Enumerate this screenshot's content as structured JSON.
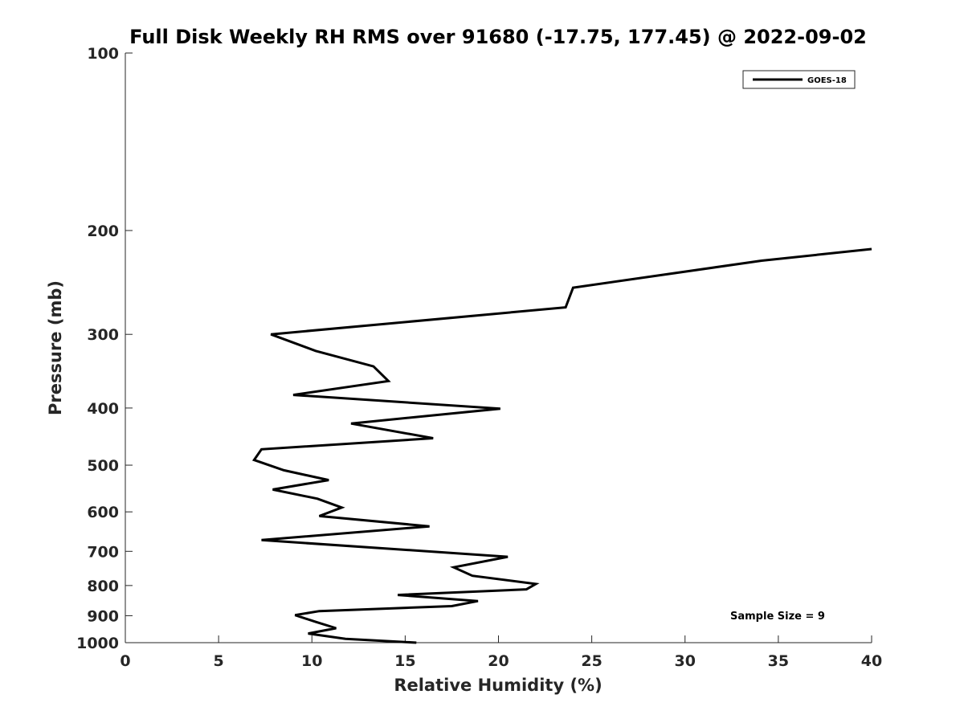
{
  "chart_data": {
    "type": "line",
    "title": "Full Disk Weekly RH RMS over 91680 (-17.75, 177.45) @ 2022-09-02",
    "xlabel": "Relative Humidity (%)",
    "ylabel": "Pressure (mb)",
    "xlim": [
      0,
      40
    ],
    "ylim": [
      100,
      1000
    ],
    "yscale": "log",
    "yreversed": true,
    "grid": false,
    "x_ticks": [
      "0",
      "5",
      "10",
      "15",
      "20",
      "25",
      "30",
      "35",
      "40"
    ],
    "y_ticks": [
      "100",
      "200",
      "300",
      "400",
      "500",
      "600",
      "700",
      "800",
      "900",
      "1000"
    ],
    "legend": {
      "position": "top-right",
      "entries": [
        "GOES-18"
      ]
    },
    "annotation": "Sample Size = 9",
    "series": [
      {
        "name": "GOES-18",
        "color": "#000000",
        "points": [
          [
            40.0,
            215
          ],
          [
            34.1,
            225
          ],
          [
            24.0,
            250
          ],
          [
            23.6,
            270
          ],
          [
            7.8,
            300
          ],
          [
            10.2,
            320
          ],
          [
            13.3,
            340
          ],
          [
            14.1,
            360
          ],
          [
            9.0,
            380
          ],
          [
            20.1,
            401
          ],
          [
            12.1,
            425
          ],
          [
            16.5,
            450
          ],
          [
            7.3,
            470
          ],
          [
            6.9,
            490
          ],
          [
            8.5,
            510
          ],
          [
            10.9,
            530
          ],
          [
            7.9,
            550
          ],
          [
            10.3,
            570
          ],
          [
            11.6,
            590
          ],
          [
            10.4,
            610
          ],
          [
            16.3,
            635
          ],
          [
            7.3,
            670
          ],
          [
            20.5,
            715
          ],
          [
            17.6,
            745
          ],
          [
            18.6,
            770
          ],
          [
            22.0,
            795
          ],
          [
            21.5,
            812
          ],
          [
            14.6,
            830
          ],
          [
            18.9,
            850
          ],
          [
            17.5,
            867
          ],
          [
            10.4,
            884
          ],
          [
            9.1,
            898
          ],
          [
            10.2,
            922
          ],
          [
            11.3,
            945
          ],
          [
            9.8,
            965
          ],
          [
            11.8,
            985
          ],
          [
            15.6,
            1000
          ]
        ]
      }
    ]
  }
}
